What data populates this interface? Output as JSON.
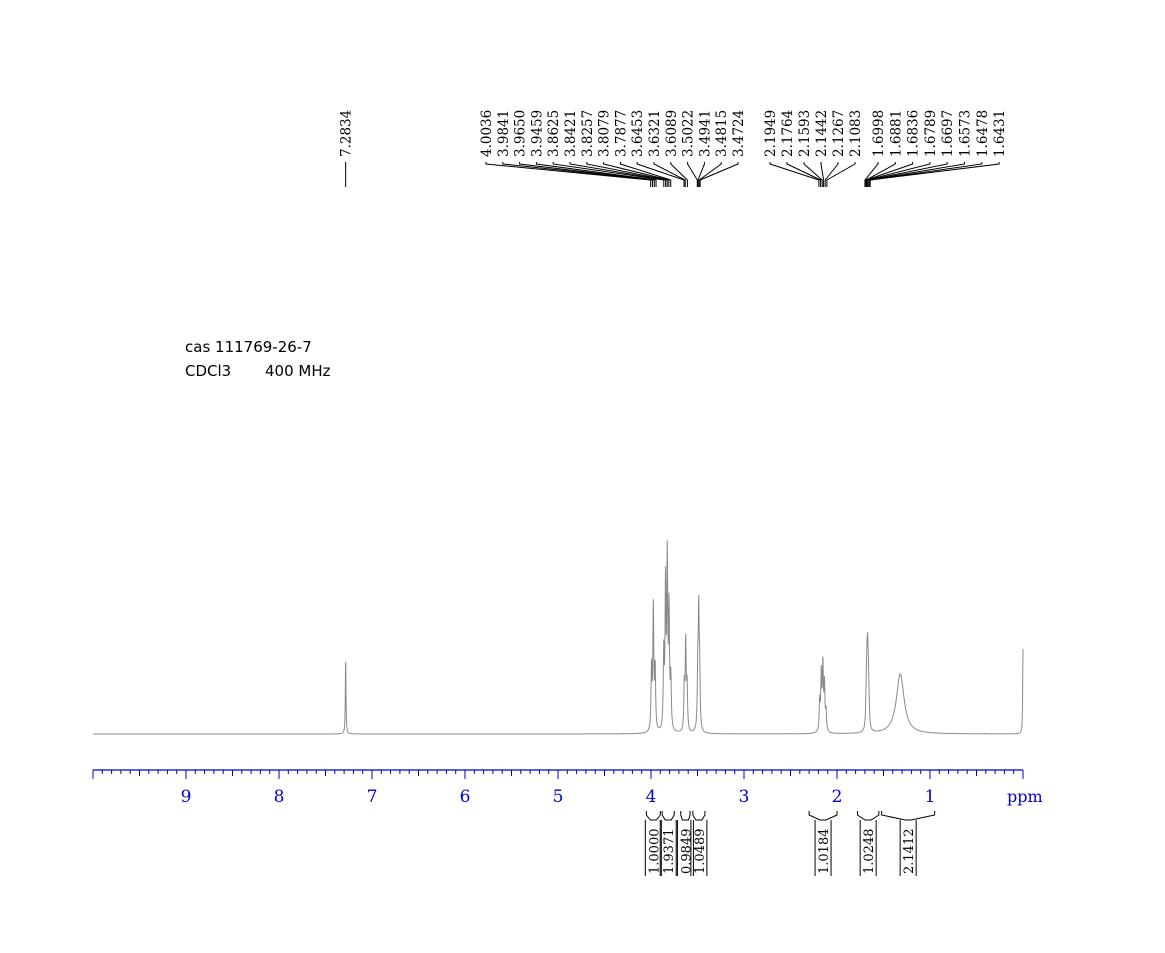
{
  "sample": {
    "cas": "cas 111769-26-7",
    "solvent": "CDCl3",
    "frequency": "400 MHz"
  },
  "chart_data": {
    "type": "line",
    "title": "",
    "xlabel": "ppm",
    "x_axis": {
      "min": 0,
      "max": 10,
      "reversed": true,
      "ticks": [
        9,
        8,
        7,
        6,
        5,
        4,
        3,
        2,
        1
      ],
      "unit_label": "ppm"
    },
    "colors": {
      "axis": "#0000cc",
      "spectrum": "#8a8a8a",
      "labels": "#000000"
    },
    "peak_labels": {
      "group0": [
        "7.2834"
      ],
      "group1": [
        "4.0036",
        "3.9841",
        "3.9650",
        "3.9459",
        "3.8625",
        "3.8421",
        "3.8257",
        "3.8079",
        "3.7877",
        "3.6453",
        "3.6321",
        "3.6089",
        "3.5022",
        "3.4941",
        "3.4815",
        "3.4724"
      ],
      "group2": [
        "2.1949",
        "2.1764",
        "2.1593",
        "2.1442",
        "2.1267",
        "2.1083"
      ],
      "group3": [
        "1.6998",
        "1.6881",
        "1.6836",
        "1.6789",
        "1.6697",
        "1.6573",
        "1.6478",
        "1.6431"
      ]
    },
    "integrals": [
      {
        "value": "1.0000",
        "from": 4.05,
        "to": 3.9
      },
      {
        "value": "1.9371",
        "from": 3.88,
        "to": 3.75
      },
      {
        "value": "0.9849",
        "from": 3.68,
        "to": 3.58
      },
      {
        "value": "1.0489",
        "from": 3.55,
        "to": 3.42
      },
      {
        "value": "1.0184",
        "from": 2.3,
        "to": 2.0
      },
      {
        "value": "1.0248",
        "from": 1.78,
        "to": 1.55
      },
      {
        "value": "2.1412",
        "from": 1.52,
        "to": 0.95
      }
    ],
    "signals": [
      {
        "center": 7.2834,
        "height": 78,
        "width": 0.004,
        "type": "s"
      },
      {
        "center": 3.975,
        "height": 125,
        "width": 0.006,
        "type": "t",
        "sep": 0.0195
      },
      {
        "center": 3.825,
        "height": 175,
        "width": 0.006,
        "type": "m",
        "sep": 0.019
      },
      {
        "center": 3.627,
        "height": 88,
        "width": 0.006,
        "type": "t",
        "sep": 0.015
      },
      {
        "center": 3.487,
        "height": 110,
        "width": 0.006,
        "type": "t",
        "sep": 0.01
      },
      {
        "center": 2.152,
        "height": 70,
        "width": 0.006,
        "type": "m",
        "sep": 0.017
      },
      {
        "center": 1.671,
        "height": 62,
        "width": 0.006,
        "type": "m",
        "sep": 0.0075
      },
      {
        "center": 1.32,
        "height": 60,
        "width": 0.05,
        "type": "broad"
      },
      {
        "center": 0.0,
        "height": 85,
        "width": 0.004,
        "type": "s"
      }
    ]
  }
}
